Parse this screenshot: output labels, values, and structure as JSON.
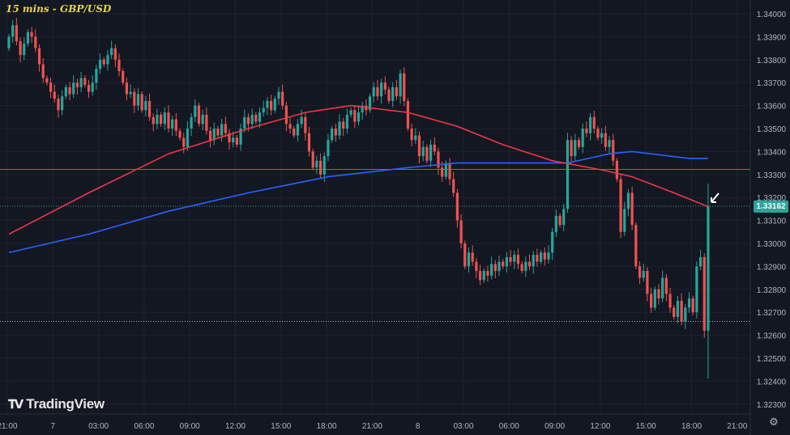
{
  "header": {
    "title": "15 mins - GBP/USD"
  },
  "branding": {
    "logo_text": "TradingView"
  },
  "colors": {
    "background": "#131722",
    "up": "#26a69a",
    "down": "#ef5350",
    "ma_red": "#f23645",
    "ma_blue": "#2962ff",
    "title": "#e8d44d"
  },
  "icons": {
    "settings": "gear-icon",
    "annotation_arrow": "arrow-icon"
  },
  "chart_data": {
    "type": "candlestick",
    "title": "15 mins - GBP/USD",
    "interval": "15 mins",
    "symbol": "GBP/USD",
    "ylim": [
      1.3224,
      1.3405
    ],
    "grid": true,
    "current_price": 1.33162,
    "current_price_label": "1.33162",
    "horizontal_lines": [
      {
        "price": 1.33322,
        "style": "solid",
        "color": "#f23645"
      },
      {
        "price": 1.3266,
        "style": "dotted",
        "color": "#b2b5be"
      }
    ],
    "y_ticks": [
      "1.34000",
      "1.33900",
      "1.33800",
      "1.33700",
      "1.33600",
      "1.33500",
      "1.33400",
      "1.33300",
      "1.33200",
      "1.33100",
      "1.33000",
      "1.32900",
      "1.32800",
      "1.32700",
      "1.32600",
      "1.32500",
      "1.32400",
      "1.32300"
    ],
    "x_ticks": [
      "21:00",
      "7",
      "03:00",
      "06:00",
      "09:00",
      "12:00",
      "15:00",
      "18:00",
      "21:00",
      "8",
      "03:00",
      "06:00",
      "09:00",
      "12:00",
      "15:00",
      "18:00",
      "21:00"
    ],
    "first_open": 1.3385,
    "closes": [
      1.339,
      1.3395,
      1.3388,
      1.3382,
      1.3387,
      1.3392,
      1.339,
      1.3385,
      1.3378,
      1.3372,
      1.337,
      1.3366,
      1.3363,
      1.3358,
      1.3364,
      1.3368,
      1.3365,
      1.337,
      1.3368,
      1.3372,
      1.3369,
      1.3366,
      1.337,
      1.3376,
      1.338,
      1.3378,
      1.3382,
      1.3385,
      1.338,
      1.3375,
      1.337,
      1.3365,
      1.3366,
      1.336,
      1.3365,
      1.3358,
      1.3362,
      1.3355,
      1.3352,
      1.3356,
      1.3352,
      1.3357,
      1.335,
      1.3354,
      1.3349,
      1.3346,
      1.3342,
      1.335,
      1.3355,
      1.336,
      1.3352,
      1.3356,
      1.3349,
      1.3345,
      1.335,
      1.3347,
      1.3352,
      1.3348,
      1.3344,
      1.3346,
      1.3343,
      1.335,
      1.3355,
      1.3352,
      1.3356,
      1.3353,
      1.3357,
      1.3359,
      1.3362,
      1.3358,
      1.3363,
      1.3366,
      1.336,
      1.3352,
      1.335,
      1.3347,
      1.3352,
      1.3355,
      1.3348,
      1.334,
      1.3333,
      1.3336,
      1.333,
      1.3338,
      1.3345,
      1.335,
      1.3347,
      1.3353,
      1.335,
      1.3356,
      1.3358,
      1.3353,
      1.3357,
      1.336,
      1.3358,
      1.3364,
      1.3368,
      1.3364,
      1.337,
      1.3367,
      1.3362,
      1.3368,
      1.3364,
      1.3374,
      1.3362,
      1.335,
      1.3345,
      1.3347,
      1.3338,
      1.3342,
      1.3336,
      1.3343,
      1.334,
      1.3333,
      1.3329,
      1.3335,
      1.3328,
      1.3322,
      1.331,
      1.33,
      1.329,
      1.3296,
      1.3292,
      1.3288,
      1.3284,
      1.3288,
      1.3286,
      1.3291,
      1.3288,
      1.3292,
      1.329,
      1.3294,
      1.3292,
      1.3295,
      1.3291,
      1.3288,
      1.3292,
      1.329,
      1.3295,
      1.3292,
      1.3296,
      1.3293,
      1.3296,
      1.3305,
      1.3312,
      1.3308,
      1.3315,
      1.3345,
      1.3338,
      1.3345,
      1.3342,
      1.335,
      1.3348,
      1.3355,
      1.335,
      1.3346,
      1.3348,
      1.3342,
      1.3345,
      1.3336,
      1.3328,
      1.3305,
      1.3315,
      1.3322,
      1.3308,
      1.329,
      1.3285,
      1.3288,
      1.3278,
      1.3272,
      1.328,
      1.3276,
      1.3285,
      1.3278,
      1.3272,
      1.3268,
      1.3275,
      1.3266,
      1.3272,
      1.3276,
      1.327,
      1.329,
      1.3294,
      1.3262,
      1.33162
    ],
    "last_candle_low": 1.3241,
    "last_candle_high": 1.3326,
    "ma_red": [
      [
        0,
        1.3304
      ],
      [
        21,
        1.3322
      ],
      [
        42,
        1.3339
      ],
      [
        63,
        1.335
      ],
      [
        78,
        1.3357
      ],
      [
        90,
        1.336
      ],
      [
        105,
        1.3357
      ],
      [
        118,
        1.3351
      ],
      [
        130,
        1.3343
      ],
      [
        143,
        1.3336
      ],
      [
        156,
        1.3332
      ],
      [
        164,
        1.3329
      ],
      [
        175,
        1.3322
      ],
      [
        184,
        1.3316
      ]
    ],
    "ma_blue": [
      [
        0,
        1.3296
      ],
      [
        21,
        1.3304
      ],
      [
        42,
        1.3314
      ],
      [
        63,
        1.3322
      ],
      [
        84,
        1.3329
      ],
      [
        105,
        1.3333
      ],
      [
        118,
        1.3335
      ],
      [
        147,
        1.3335
      ],
      [
        158,
        1.3339
      ],
      [
        164,
        1.334
      ],
      [
        179,
        1.3337
      ],
      [
        184,
        1.3337
      ]
    ]
  }
}
